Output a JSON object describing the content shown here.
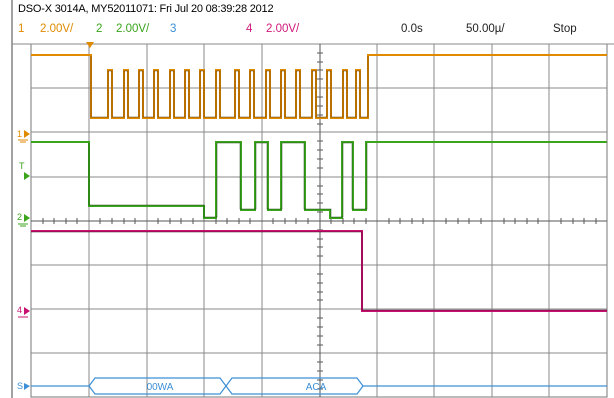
{
  "header": {
    "title": "DSO-X 3014A, MY52011071: Fri Jul 20 08:39:28 2012",
    "ch1_num": "1",
    "ch1_scale": "2.00V/",
    "ch2_num": "2",
    "ch2_scale": "2.00V/",
    "ch3_num": "3",
    "ch4_num": "4",
    "ch4_scale": "2.00V/",
    "time_offset": "0.0s",
    "time_scale": "50.00µ/",
    "run_state": "Stop"
  },
  "markers": {
    "ch1": "1",
    "trigger": "T",
    "ch2": "2",
    "ch4": "4",
    "serial": "S"
  },
  "serial_bus": {
    "packet_1": "00WA",
    "packet_2": "ACA"
  },
  "colors": {
    "ch1": "#e08a00",
    "ch2": "#3aa41c",
    "ch3": "#3c8fd6",
    "ch4": "#c8106e",
    "grid": "#6f6f6f"
  }
}
